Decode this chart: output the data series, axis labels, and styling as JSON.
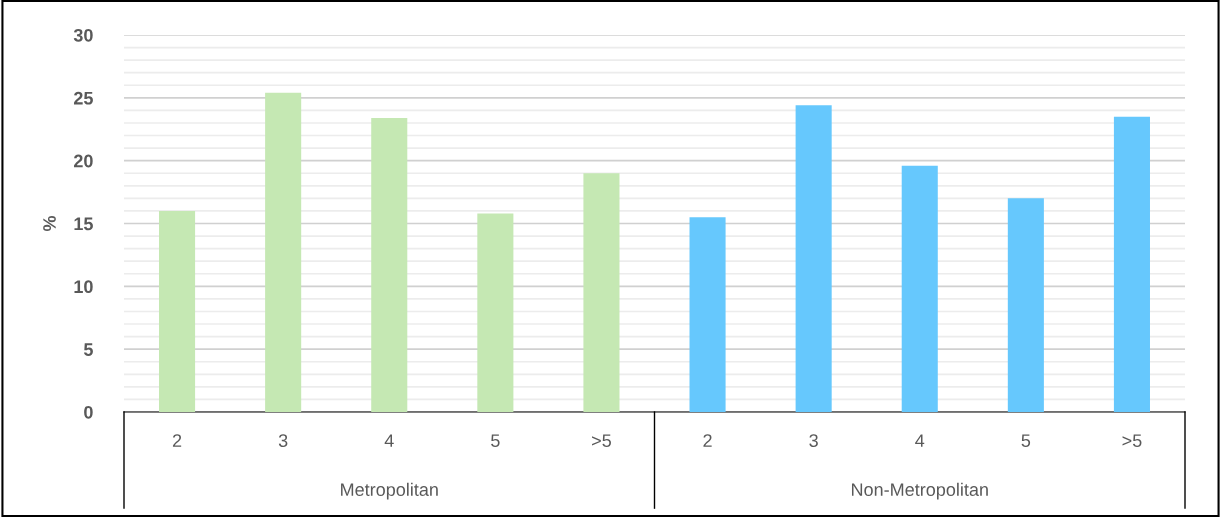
{
  "chart_data": {
    "type": "bar",
    "ylabel": "%",
    "categories": [
      "2",
      "3",
      "4",
      "5",
      ">5",
      "2",
      "3",
      "4",
      "5",
      ">5"
    ],
    "values": [
      16.0,
      25.4,
      23.4,
      15.8,
      19.0,
      15.5,
      24.4,
      19.6,
      17.0,
      23.5
    ],
    "colors": [
      "#c5e8b3",
      "#c5e8b3",
      "#c5e8b3",
      "#c5e8b3",
      "#c5e8b3",
      "#66c8fd",
      "#66c8fd",
      "#66c8fd",
      "#66c8fd",
      "#66c8fd"
    ],
    "annotations": [
      "Metropolitan",
      "Non-Metropolitan"
    ],
    "ylim": [
      0,
      30
    ],
    "yticks": [
      0,
      {
        "value": 1,
        "label": null
      },
      {
        "value": 2,
        "label": null
      },
      {
        "value": 3,
        "label": null
      },
      {
        "value": 4,
        "label": null
      },
      5,
      {
        "value": 6,
        "label": null
      },
      {
        "value": 7,
        "label": null
      },
      {
        "value": 8,
        "label": null
      },
      {
        "value": 9,
        "label": null
      },
      10,
      {
        "value": 11,
        "label": null
      },
      {
        "value": 12,
        "label": null
      },
      {
        "value": 13,
        "label": null
      },
      {
        "value": 14,
        "label": null
      },
      15,
      {
        "value": 16,
        "label": null
      },
      {
        "value": 17,
        "label": null
      },
      {
        "value": 18,
        "label": null
      },
      {
        "value": 19,
        "label": null
      },
      20,
      {
        "value": 21,
        "label": null
      },
      {
        "value": 22,
        "label": null
      },
      {
        "value": 23,
        "label": null
      },
      {
        "value": 24,
        "label": null
      },
      25,
      {
        "value": 26,
        "label": null
      },
      {
        "value": 27,
        "label": null
      },
      {
        "value": 28,
        "label": null
      },
      {
        "value": 29,
        "label": null
      },
      30
    ],
    "grid": "y"
  }
}
